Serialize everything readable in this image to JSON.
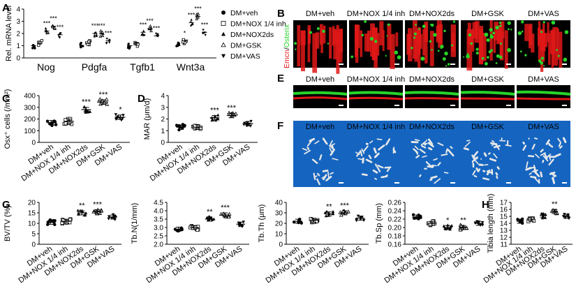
{
  "figure": {
    "panel_labels": [
      "A",
      "B",
      "C",
      "D",
      "E",
      "F",
      "G",
      "H"
    ],
    "groups": [
      "DM+veh",
      "DM+NOX 1/4 inh",
      "DM+NOX2ds",
      "DM+GSK",
      "DM+VAS"
    ],
    "legend": [
      {
        "label": "DM+veh",
        "marker": "circle-filled"
      },
      {
        "label": "DM+NOX 1/4 inh",
        "marker": "square-open"
      },
      {
        "label": "DM+NOX2ds",
        "marker": "triangle-up-filled"
      },
      {
        "label": "DM+GSK",
        "marker": "triangle-up-open"
      },
      {
        "label": "DM+VAS",
        "marker": "triangle-down-filled"
      }
    ],
    "image_panels": {
      "B": {
        "stain_label_red": "Emcn",
        "stain_label_slash": "/",
        "stain_label_green": "Osterix"
      },
      "E": {},
      "F": {}
    },
    "colors": {
      "emcn_red": "#e01818",
      "osterix_green": "#28d428",
      "microct_background": "#1565c0",
      "bone": "#e8e8e8"
    }
  },
  "chart_data": [
    {
      "panel": "A",
      "type": "scatter",
      "title": "",
      "xlabel": "",
      "ylabel": "Rel. mRNA level",
      "ylim": [
        0,
        4
      ],
      "yticks": [
        "0",
        "1",
        "2",
        "3",
        "4"
      ],
      "categories": [
        "Nog",
        "Pdgfa",
        "Tgfb1",
        "Wnt3a"
      ],
      "series": [
        {
          "name": "DM+veh",
          "means": [
            1.0,
            1.0,
            1.0,
            1.0
          ],
          "sig": [
            "",
            "",
            "",
            ""
          ]
        },
        {
          "name": "DM+NOX 1/4 inh",
          "means": [
            1.2,
            1.2,
            1.2,
            1.4
          ],
          "sig": [
            "",
            "",
            "",
            "*"
          ]
        },
        {
          "name": "DM+NOX2ds",
          "means": [
            2.2,
            2.0,
            2.1,
            2.9
          ],
          "sig": [
            "***",
            "***",
            "***",
            "***"
          ]
        },
        {
          "name": "DM+GSK",
          "means": [
            2.6,
            2.0,
            2.4,
            3.4
          ],
          "sig": [
            "***",
            "***",
            "***",
            "***"
          ]
        },
        {
          "name": "DM+VAS",
          "means": [
            1.9,
            1.4,
            1.8,
            2.1
          ],
          "sig": [
            "***",
            "***",
            "***",
            "***"
          ]
        }
      ]
    },
    {
      "panel": "C",
      "type": "scatter",
      "ylabel": "Osx⁺ cells (/mm²)",
      "xlabel": "",
      "ylim": [
        0,
        400
      ],
      "yticks": [
        "0",
        "100",
        "200",
        "300",
        "400"
      ],
      "categories": [
        "DM+veh",
        "DM+NOX 1/4 inh",
        "DM+NOX2ds",
        "DM+GSK",
        "DM+VAS"
      ],
      "values": [
        168,
        180,
        280,
        345,
        215
      ],
      "sig": [
        "",
        "",
        "***",
        "***",
        "*"
      ]
    },
    {
      "panel": "D",
      "type": "scatter",
      "ylabel": "MAR (μm/d)",
      "xlabel": "",
      "ylim": [
        0,
        4
      ],
      "yticks": [
        "0",
        "1",
        "2",
        "3",
        "4"
      ],
      "categories": [
        "DM+veh",
        "DM+NOX 1/4 inh",
        "DM+NOX2ds",
        "DM+GSK",
        "DM+VAS"
      ],
      "values": [
        1.3,
        1.3,
        2.1,
        2.3,
        1.6
      ],
      "sig": [
        "",
        "",
        "***",
        "***",
        ""
      ]
    },
    {
      "panel": "G1",
      "type": "scatter",
      "ylabel": "BV/TV (%)",
      "xlabel": "",
      "ylim": [
        0,
        20
      ],
      "yticks": [
        "0",
        "5",
        "10",
        "15",
        "20"
      ],
      "categories": [
        "DM+veh",
        "DM+NOX 1/4 inh",
        "DM+NOX2ds",
        "DM+GSK",
        "DM+VAS"
      ],
      "values": [
        10.5,
        11,
        15,
        15.5,
        13
      ],
      "sig": [
        "",
        "",
        "**",
        "***",
        ""
      ]
    },
    {
      "panel": "G2",
      "type": "scatter",
      "ylabel": "Tb.N(1/mm)",
      "xlabel": "",
      "ylim": [
        2.0,
        4.5
      ],
      "yticks": [
        "2.0",
        "2.5",
        "3.0",
        "3.5",
        "4.0",
        "4.5"
      ],
      "categories": [
        "DM+veh",
        "DM+NOX 1/4 inh",
        "DM+NOX2ds",
        "DM+GSK",
        "DM+VAS"
      ],
      "values": [
        2.9,
        3.0,
        3.5,
        3.75,
        3.2
      ],
      "sig": [
        "",
        "",
        "**",
        "***",
        ""
      ]
    },
    {
      "panel": "G3",
      "type": "scatter",
      "ylabel": "Tb.Th (μm)",
      "xlabel": "",
      "ylim": [
        0,
        40
      ],
      "yticks": [
        "0",
        "10",
        "20",
        "30",
        "40"
      ],
      "categories": [
        "DM+veh",
        "DM+NOX 1/4 inh",
        "DM+NOX2ds",
        "DM+GSK",
        "DM+VAS"
      ],
      "values": [
        22,
        23,
        29,
        30,
        25
      ],
      "sig": [
        "",
        "",
        "**",
        "***",
        ""
      ]
    },
    {
      "panel": "G4",
      "type": "scatter",
      "ylabel": "Tb.Sp (mm)",
      "xlabel": "",
      "ylim": [
        0.16,
        0.26
      ],
      "yticks": [
        "0.16",
        "0.18",
        "0.20",
        "0.22",
        "0.24",
        "0.26"
      ],
      "categories": [
        "DM+veh",
        "DM+NOX 1/4 inh",
        "DM+NOX2ds",
        "DM+GSK",
        "DM+VAS"
      ],
      "values": [
        0.225,
        0.21,
        0.2,
        0.2,
        0.21
      ],
      "sig": [
        "",
        "",
        "*",
        "**",
        ""
      ]
    },
    {
      "panel": "H",
      "type": "scatter",
      "ylabel": "Tibia length (mm)",
      "xlabel": "",
      "ylim": [
        11,
        17
      ],
      "yticks": [
        "11",
        "12",
        "13",
        "14",
        "15",
        "16",
        "17"
      ],
      "categories": [
        "DM+veh",
        "DM+NOX 1/4 inh",
        "DM+NOX2ds",
        "DM+GSK",
        "DM+VAS"
      ],
      "values": [
        14.3,
        14.6,
        15.1,
        15.7,
        15.0
      ],
      "sig": [
        "",
        "",
        "",
        "**",
        ""
      ]
    }
  ]
}
